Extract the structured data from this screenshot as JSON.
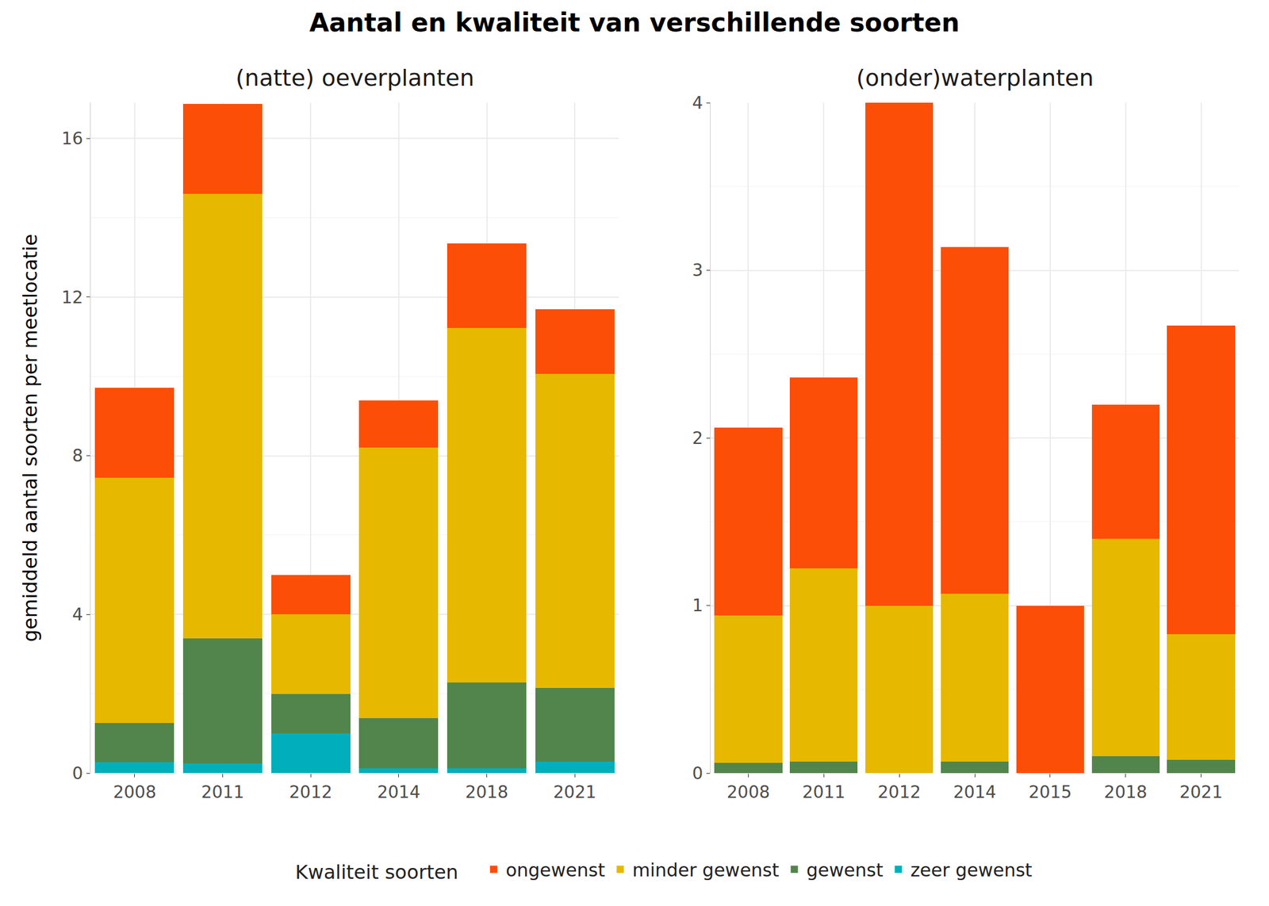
{
  "title": "Aantal en kwaliteit van verschillende soorten",
  "y_label": "gemiddeld aantal soorten per meetlocatie",
  "legend_title": "Kwaliteit soorten",
  "chart_data": [
    {
      "type": "bar",
      "title": "(natte) oeverplanten",
      "stacked": true,
      "grid": true,
      "legend": "bottom",
      "categories": [
        "2008",
        "2011",
        "2012",
        "2014",
        "2018",
        "2021"
      ],
      "ylim": [
        0,
        16.9
      ],
      "yticks": [
        0,
        4,
        8,
        12,
        16
      ],
      "series": [
        {
          "name": "zeer gewenst",
          "color": "#00AFBB",
          "values": [
            0.27,
            0.25,
            1.0,
            0.12,
            0.12,
            0.29
          ]
        },
        {
          "name": "gewenst",
          "color": "#52854C",
          "values": [
            1.0,
            3.15,
            1.0,
            1.27,
            2.16,
            1.85
          ]
        },
        {
          "name": "minder gewenst",
          "color": "#E7B800",
          "values": [
            6.18,
            11.2,
            2.0,
            6.81,
            8.94,
            7.92
          ]
        },
        {
          "name": "ongewenst",
          "color": "#FC4E07",
          "values": [
            2.26,
            2.27,
            1.0,
            1.2,
            2.14,
            1.64
          ]
        }
      ]
    },
    {
      "type": "bar",
      "title": "(onder)waterplanten",
      "stacked": true,
      "grid": true,
      "legend": "bottom",
      "categories": [
        "2008",
        "2011",
        "2012",
        "2014",
        "2015",
        "2018",
        "2021"
      ],
      "ylim": [
        0,
        4
      ],
      "yticks": [
        0,
        1,
        2,
        3,
        4
      ],
      "series": [
        {
          "name": "zeer gewenst",
          "color": "#00AFBB",
          "values": [
            0,
            0,
            0,
            0,
            0,
            0,
            0
          ]
        },
        {
          "name": "gewenst",
          "color": "#52854C",
          "values": [
            0.06,
            0.07,
            0,
            0.07,
            0,
            0.1,
            0.08
          ]
        },
        {
          "name": "minder gewenst",
          "color": "#E7B800",
          "values": [
            0.88,
            1.15,
            1.0,
            1.0,
            0,
            1.3,
            0.75
          ]
        },
        {
          "name": "ongewenst",
          "color": "#FC4E07",
          "values": [
            1.12,
            1.14,
            3.0,
            2.07,
            1.0,
            0.8,
            1.84
          ]
        }
      ]
    }
  ]
}
